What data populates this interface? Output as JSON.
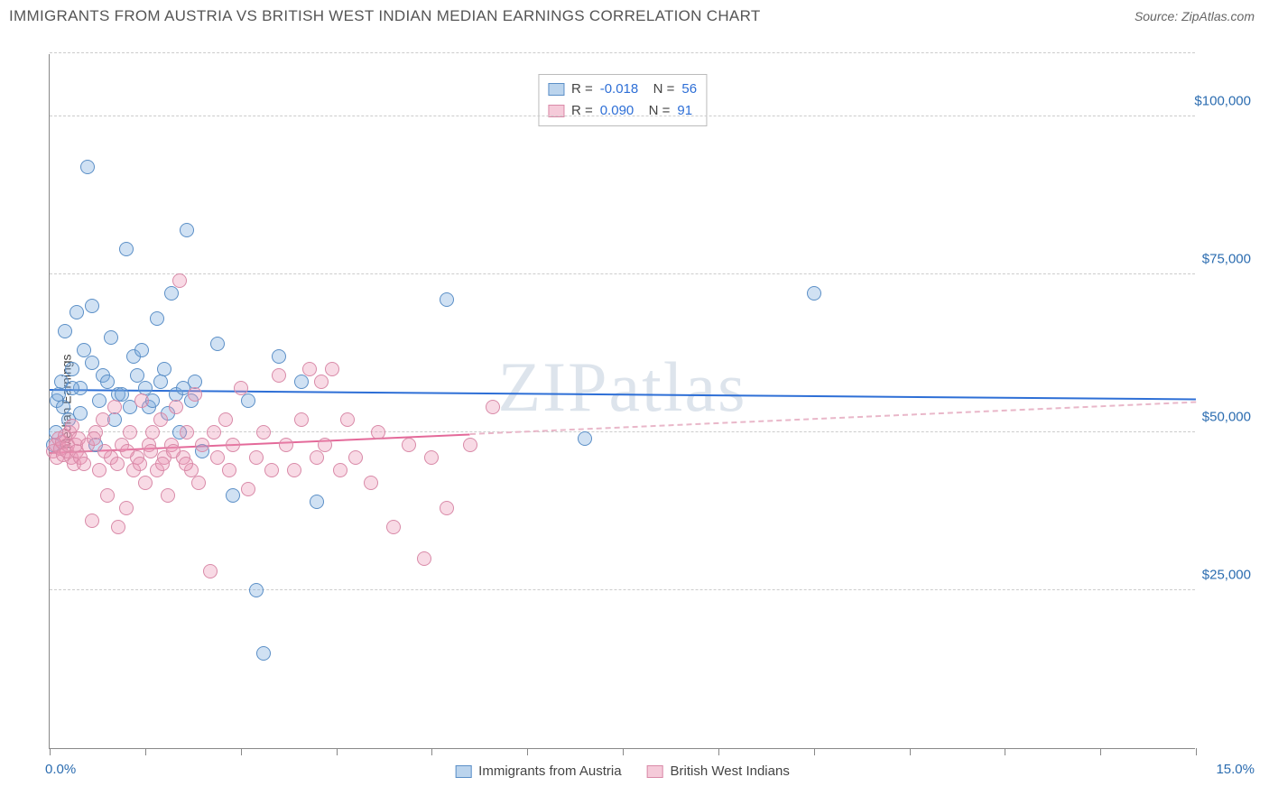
{
  "header": {
    "title": "IMMIGRANTS FROM AUSTRIA VS BRITISH WEST INDIAN MEDIAN EARNINGS CORRELATION CHART",
    "source_prefix": "Source: ",
    "source_name": "ZipAtlas.com"
  },
  "watermark": "ZIPatlas",
  "chart": {
    "type": "scatter",
    "yaxis_title": "Median Earnings",
    "xlim": [
      0,
      15
    ],
    "ylim": [
      0,
      110000
    ],
    "x_tick_positions": [
      0,
      1.25,
      2.5,
      3.75,
      5,
      6.25,
      7.5,
      8.75,
      10,
      11.25,
      12.5,
      13.75,
      15
    ],
    "x_label_min": "0.0%",
    "x_label_max": "15.0%",
    "y_gridlines": [
      25000,
      50000,
      75000,
      100000,
      110000
    ],
    "y_tick_labels": {
      "25000": "$25,000",
      "50000": "$50,000",
      "75000": "$75,000",
      "100000": "$100,000"
    },
    "background_color": "#ffffff",
    "grid_color": "#cccccc",
    "axis_color": "#888888",
    "tick_label_color": "#2b6cb0",
    "marker_radius": 8,
    "series": [
      {
        "name": "Immigrants from Austria",
        "key": "a",
        "fill_color": "rgba(120,170,220,0.35)",
        "stroke_color": "#5b8fc7",
        "trend_color": "#2e6fd6",
        "trend_width": 2,
        "R": "-0.018",
        "N": "56",
        "trend": {
          "y_at_xmin": 57000,
          "y_at_xmax": 55500,
          "solid_until_x": 15
        },
        "points": [
          [
            0.05,
            48000
          ],
          [
            0.08,
            50000
          ],
          [
            0.1,
            55000
          ],
          [
            0.12,
            56000
          ],
          [
            0.15,
            58000
          ],
          [
            0.18,
            54000
          ],
          [
            0.2,
            66000
          ],
          [
            0.25,
            52000
          ],
          [
            0.3,
            60000
          ],
          [
            0.35,
            69000
          ],
          [
            0.4,
            57000
          ],
          [
            0.45,
            63000
          ],
          [
            0.5,
            92000
          ],
          [
            0.55,
            70000
          ],
          [
            0.6,
            48000
          ],
          [
            0.7,
            59000
          ],
          [
            0.8,
            65000
          ],
          [
            0.9,
            56000
          ],
          [
            1.0,
            79000
          ],
          [
            1.1,
            62000
          ],
          [
            1.2,
            63000
          ],
          [
            1.3,
            54000
          ],
          [
            1.4,
            68000
          ],
          [
            1.5,
            60000
          ],
          [
            1.6,
            72000
          ],
          [
            1.7,
            50000
          ],
          [
            1.8,
            82000
          ],
          [
            1.9,
            58000
          ],
          [
            2.0,
            47000
          ],
          [
            2.2,
            64000
          ],
          [
            2.4,
            40000
          ],
          [
            2.6,
            55000
          ],
          [
            2.7,
            25000
          ],
          [
            2.8,
            15000
          ],
          [
            3.0,
            62000
          ],
          [
            3.3,
            58000
          ],
          [
            3.5,
            39000
          ],
          [
            5.2,
            71000
          ],
          [
            7.0,
            49000
          ],
          [
            10.0,
            72000
          ],
          [
            0.3,
            57000
          ],
          [
            0.4,
            53000
          ],
          [
            0.55,
            61000
          ],
          [
            0.65,
            55000
          ],
          [
            0.75,
            58000
          ],
          [
            0.85,
            52000
          ],
          [
            0.95,
            56000
          ],
          [
            1.05,
            54000
          ],
          [
            1.15,
            59000
          ],
          [
            1.25,
            57000
          ],
          [
            1.35,
            55000
          ],
          [
            1.45,
            58000
          ],
          [
            1.55,
            53000
          ],
          [
            1.65,
            56000
          ],
          [
            1.75,
            57000
          ],
          [
            1.85,
            55000
          ]
        ]
      },
      {
        "name": "British West Indians",
        "key": "b",
        "fill_color": "rgba(235,150,180,0.35)",
        "stroke_color": "#d98aa8",
        "trend_color": "#e46a9a",
        "trend_width": 2,
        "R": "0.090",
        "N": "91",
        "trend": {
          "y_at_xmin": 47000,
          "y_at_xmax": 55000,
          "solid_until_x": 5.5
        },
        "points": [
          [
            0.05,
            47000
          ],
          [
            0.08,
            48000
          ],
          [
            0.1,
            46000
          ],
          [
            0.12,
            49000
          ],
          [
            0.14,
            47500
          ],
          [
            0.16,
            48500
          ],
          [
            0.18,
            46500
          ],
          [
            0.2,
            49500
          ],
          [
            0.22,
            47000
          ],
          [
            0.24,
            48000
          ],
          [
            0.26,
            50000
          ],
          [
            0.28,
            46000
          ],
          [
            0.3,
            51000
          ],
          [
            0.32,
            45000
          ],
          [
            0.34,
            48000
          ],
          [
            0.36,
            47000
          ],
          [
            0.38,
            49000
          ],
          [
            0.4,
            46000
          ],
          [
            0.5,
            48000
          ],
          [
            0.55,
            36000
          ],
          [
            0.6,
            50000
          ],
          [
            0.65,
            44000
          ],
          [
            0.7,
            52000
          ],
          [
            0.75,
            40000
          ],
          [
            0.8,
            46000
          ],
          [
            0.85,
            54000
          ],
          [
            0.9,
            35000
          ],
          [
            0.95,
            48000
          ],
          [
            1.0,
            38000
          ],
          [
            1.05,
            50000
          ],
          [
            1.1,
            44000
          ],
          [
            1.15,
            46000
          ],
          [
            1.2,
            55000
          ],
          [
            1.25,
            42000
          ],
          [
            1.3,
            48000
          ],
          [
            1.35,
            50000
          ],
          [
            1.4,
            44000
          ],
          [
            1.45,
            52000
          ],
          [
            1.5,
            46000
          ],
          [
            1.55,
            40000
          ],
          [
            1.6,
            48000
          ],
          [
            1.65,
            54000
          ],
          [
            1.7,
            74000
          ],
          [
            1.75,
            46000
          ],
          [
            1.8,
            50000
          ],
          [
            1.85,
            44000
          ],
          [
            1.9,
            56000
          ],
          [
            1.95,
            42000
          ],
          [
            2.0,
            48000
          ],
          [
            2.1,
            28000
          ],
          [
            2.15,
            50000
          ],
          [
            2.2,
            46000
          ],
          [
            2.3,
            52000
          ],
          [
            2.35,
            44000
          ],
          [
            2.4,
            48000
          ],
          [
            2.5,
            57000
          ],
          [
            2.6,
            41000
          ],
          [
            2.7,
            46000
          ],
          [
            2.8,
            50000
          ],
          [
            2.9,
            44000
          ],
          [
            3.0,
            59000
          ],
          [
            3.1,
            48000
          ],
          [
            3.2,
            44000
          ],
          [
            3.3,
            52000
          ],
          [
            3.4,
            60000
          ],
          [
            3.5,
            46000
          ],
          [
            3.55,
            58000
          ],
          [
            3.6,
            48000
          ],
          [
            3.7,
            60000
          ],
          [
            3.8,
            44000
          ],
          [
            3.9,
            52000
          ],
          [
            4.0,
            46000
          ],
          [
            4.2,
            42000
          ],
          [
            4.3,
            50000
          ],
          [
            4.5,
            35000
          ],
          [
            4.7,
            48000
          ],
          [
            4.9,
            30000
          ],
          [
            5.0,
            46000
          ],
          [
            5.2,
            38000
          ],
          [
            5.5,
            48000
          ],
          [
            5.8,
            54000
          ],
          [
            0.45,
            45000
          ],
          [
            0.58,
            49000
          ],
          [
            0.72,
            47000
          ],
          [
            0.88,
            45000
          ],
          [
            1.02,
            47000
          ],
          [
            1.18,
            45000
          ],
          [
            1.32,
            47000
          ],
          [
            1.48,
            45000
          ],
          [
            1.62,
            47000
          ],
          [
            1.78,
            45000
          ]
        ]
      }
    ],
    "legend_bottom": [
      {
        "swatch": "a",
        "label": "Immigrants from Austria"
      },
      {
        "swatch": "b",
        "label": "British West Indians"
      }
    ]
  }
}
